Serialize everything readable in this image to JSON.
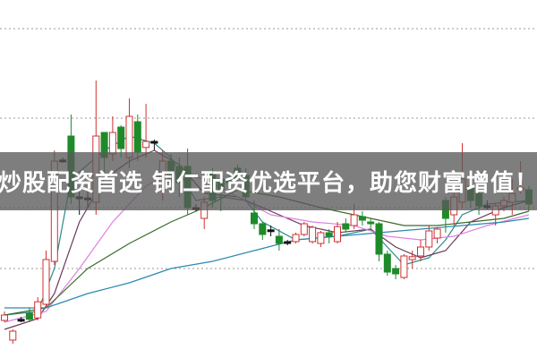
{
  "banner": {
    "text": "炒股配资首选 铜仁配资优选平台，助您财富增值！"
  },
  "colors": {
    "up": "#d03030",
    "down": "#1e8a2a",
    "doji": "#111111",
    "grid": "#9a9a9a",
    "banner_bg": "#5a5a5a"
  },
  "chart_data": {
    "type": "candlestick",
    "title": "",
    "xlabel": "",
    "ylabel": "",
    "ylim": [
      0,
      100
    ],
    "grid": "horizontal-dotted",
    "gridlines": [
      25,
      42,
      67,
      92
    ],
    "candles": [
      [
        10.5,
        13,
        10,
        12
      ],
      [
        5,
        8,
        4,
        7.5
      ],
      [
        10.8,
        11.5,
        10,
        10.6
      ],
      [
        12.5,
        14,
        10,
        10.8
      ],
      [
        11.2,
        17,
        10.5,
        15.7
      ],
      [
        15,
        30,
        14,
        27.5
      ],
      [
        27,
        58,
        26,
        55
      ],
      [
        55,
        56,
        54.5,
        55.3
      ],
      [
        62,
        68,
        43,
        45
      ],
      [
        44.8,
        47,
        40,
        45
      ],
      [
        44.5,
        47,
        42,
        44.7
      ],
      [
        43.5,
        77.5,
        40,
        62
      ],
      [
        63,
        63,
        52,
        56
      ],
      [
        57,
        67.5,
        55,
        63
      ],
      [
        64.5,
        65,
        56,
        58.5
      ],
      [
        56,
        72.5,
        53,
        67.5
      ],
      [
        66,
        68,
        55,
        57.5
      ],
      [
        58.8,
        71,
        56,
        60.5
      ],
      [
        60.5,
        61,
        58,
        60.3
      ],
      [
        47.5,
        58,
        44,
        55
      ],
      [
        55,
        57,
        47,
        49
      ],
      [
        53.5,
        56,
        45,
        49
      ],
      [
        53.5,
        58.5,
        40,
        42
      ],
      [
        42,
        43,
        41,
        41.8
      ],
      [
        39,
        45,
        36,
        43.5
      ],
      [
        52,
        53,
        42,
        44
      ],
      [
        50,
        52,
        41,
        47
      ],
      [
        50,
        52,
        47,
        49
      ],
      [
        53,
        54,
        49,
        50
      ],
      [
        51,
        53,
        44,
        45
      ],
      [
        40.5,
        44,
        36,
        37.5
      ],
      [
        37.5,
        38,
        33,
        34.5
      ],
      [
        35.5,
        37,
        34,
        35.8
      ],
      [
        34,
        36,
        30,
        32
      ],
      [
        32.5,
        33,
        31.5,
        32.3
      ],
      [
        32.5,
        35,
        32,
        34.5
      ],
      [
        34.5,
        38,
        34,
        37.5
      ],
      [
        32.5,
        37,
        32,
        36.5
      ],
      [
        32,
        35.5,
        31,
        35
      ],
      [
        35,
        36,
        32,
        34
      ],
      [
        32.5,
        38,
        32,
        36.7
      ],
      [
        37.5,
        39,
        35,
        36
      ],
      [
        37,
        43,
        36,
        40
      ],
      [
        39.5,
        41,
        37,
        38.5
      ],
      [
        38,
        39,
        36,
        37.5
      ],
      [
        37.5,
        38,
        27,
        29
      ],
      [
        29,
        30,
        23,
        24
      ],
      [
        25,
        26,
        22,
        23.5
      ],
      [
        22.5,
        29,
        22,
        28.5
      ],
      [
        27.5,
        30,
        25,
        28.3
      ],
      [
        28.5,
        33,
        27,
        31
      ],
      [
        31,
        37,
        30,
        35.5
      ],
      [
        33.5,
        36.5,
        32,
        36
      ],
      [
        44,
        45,
        35,
        39
      ],
      [
        40,
        46,
        37,
        45
      ],
      [
        43.5,
        60,
        42,
        50
      ],
      [
        48,
        50,
        42,
        44
      ],
      [
        46,
        47,
        40,
        42.5
      ],
      [
        42.5,
        44,
        41.5,
        42.3
      ],
      [
        40,
        43,
        37,
        42.5
      ],
      [
        42.5,
        45,
        41,
        44
      ],
      [
        43.5,
        50,
        40,
        46
      ],
      [
        47,
        55,
        46,
        47.5
      ],
      [
        47,
        48,
        41,
        43
      ]
    ],
    "moving_averages": [
      {
        "color": "#2a8a8a",
        "points": [
          [
            0,
            12
          ],
          [
            4,
            13
          ],
          [
            6,
            25
          ],
          [
            8,
            50
          ],
          [
            12,
            58
          ],
          [
            15,
            62
          ],
          [
            18,
            60
          ],
          [
            20,
            56
          ],
          [
            23,
            44
          ],
          [
            26,
            45
          ],
          [
            29,
            44
          ],
          [
            31,
            38
          ],
          [
            35,
            33
          ],
          [
            40,
            34
          ],
          [
            44,
            36
          ],
          [
            46,
            31
          ],
          [
            48,
            26
          ],
          [
            51,
            28
          ],
          [
            53,
            33
          ],
          [
            55,
            40
          ],
          [
            58,
            43
          ],
          [
            63,
            44
          ]
        ]
      },
      {
        "color": "#6a3a5a",
        "points": [
          [
            0,
            8
          ],
          [
            4,
            11
          ],
          [
            6,
            18
          ],
          [
            9,
            38
          ],
          [
            12,
            50
          ],
          [
            15,
            55
          ],
          [
            18,
            58
          ],
          [
            21,
            54
          ],
          [
            24,
            46
          ],
          [
            28,
            45
          ],
          [
            31,
            42
          ],
          [
            36,
            37
          ],
          [
            40,
            35
          ],
          [
            44,
            36
          ],
          [
            47,
            31
          ],
          [
            50,
            28
          ],
          [
            53,
            30
          ],
          [
            56,
            38
          ],
          [
            60,
            42
          ],
          [
            63,
            44
          ]
        ]
      },
      {
        "color": "#e080e0",
        "points": [
          [
            0,
            10
          ],
          [
            5,
            13
          ],
          [
            9,
            25
          ],
          [
            13,
            38
          ],
          [
            17,
            48
          ],
          [
            20,
            52
          ],
          [
            24,
            50
          ],
          [
            28,
            45
          ],
          [
            32,
            40
          ],
          [
            37,
            38
          ],
          [
            42,
            37
          ],
          [
            46,
            34
          ],
          [
            50,
            33
          ],
          [
            54,
            34
          ],
          [
            58,
            37
          ],
          [
            63,
            40
          ]
        ]
      },
      {
        "color": "#3a6a2a",
        "points": [
          [
            0,
            12
          ],
          [
            5,
            14
          ],
          [
            10,
            25
          ],
          [
            15,
            32
          ],
          [
            20,
            38
          ],
          [
            24,
            42
          ],
          [
            28,
            47
          ],
          [
            33,
            45
          ],
          [
            38,
            42
          ],
          [
            44,
            39
          ],
          [
            48,
            37
          ],
          [
            52,
            37
          ],
          [
            56,
            38
          ],
          [
            60,
            39
          ],
          [
            63,
            41
          ]
        ]
      },
      {
        "color": "#2a8ab0",
        "points": [
          [
            0,
            14
          ],
          [
            5,
            14
          ],
          [
            10,
            18
          ],
          [
            15,
            21
          ],
          [
            20,
            25
          ],
          [
            25,
            27
          ],
          [
            30,
            30
          ],
          [
            35,
            33
          ],
          [
            40,
            34
          ],
          [
            45,
            35
          ],
          [
            50,
            36
          ],
          [
            55,
            37
          ],
          [
            60,
            38
          ],
          [
            63,
            39
          ]
        ]
      }
    ]
  }
}
